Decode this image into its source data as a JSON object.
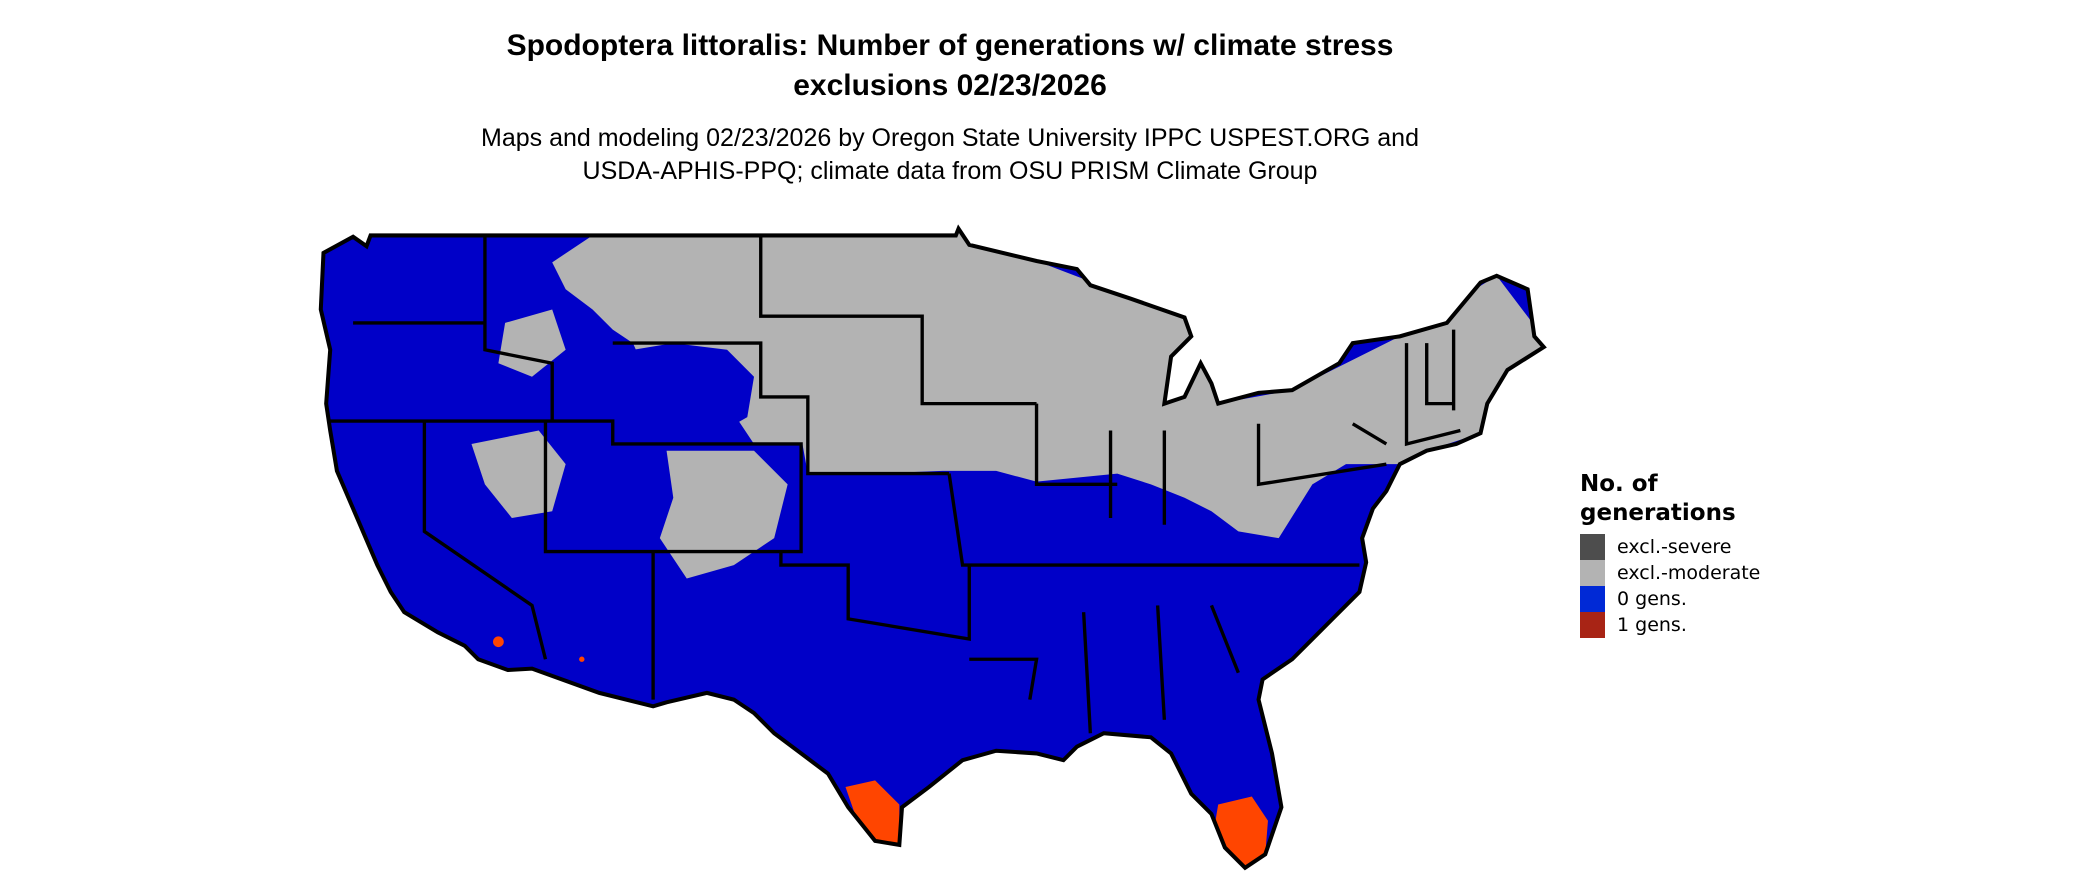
{
  "title_line1": "Spodoptera littoralis: Number of generations w/ climate stress",
  "title_line2": "exclusions 02/23/2026",
  "subtitle_line1": "Maps and modeling 02/23/2026 by Oregon State University IPPC USPEST.ORG and",
  "subtitle_line2": "USDA-APHIS-PPQ; climate data from OSU PRISM Climate Group",
  "legend": {
    "title_line1": "No. of",
    "title_line2": "generations",
    "items": [
      {
        "label": "excl.-severe",
        "color": "#4d4d4d"
      },
      {
        "label": "excl.-moderate",
        "color": "#b3b3b3"
      },
      {
        "label": "0 gens.",
        "color": "#0029d6"
      },
      {
        "label": "1 gens.",
        "color": "#a82415"
      }
    ]
  },
  "map_colors": {
    "zero_gens": "#0000c8",
    "excl_moderate": "#b3b3b3",
    "one_gens": "#ff4500",
    "border": "#000000"
  }
}
